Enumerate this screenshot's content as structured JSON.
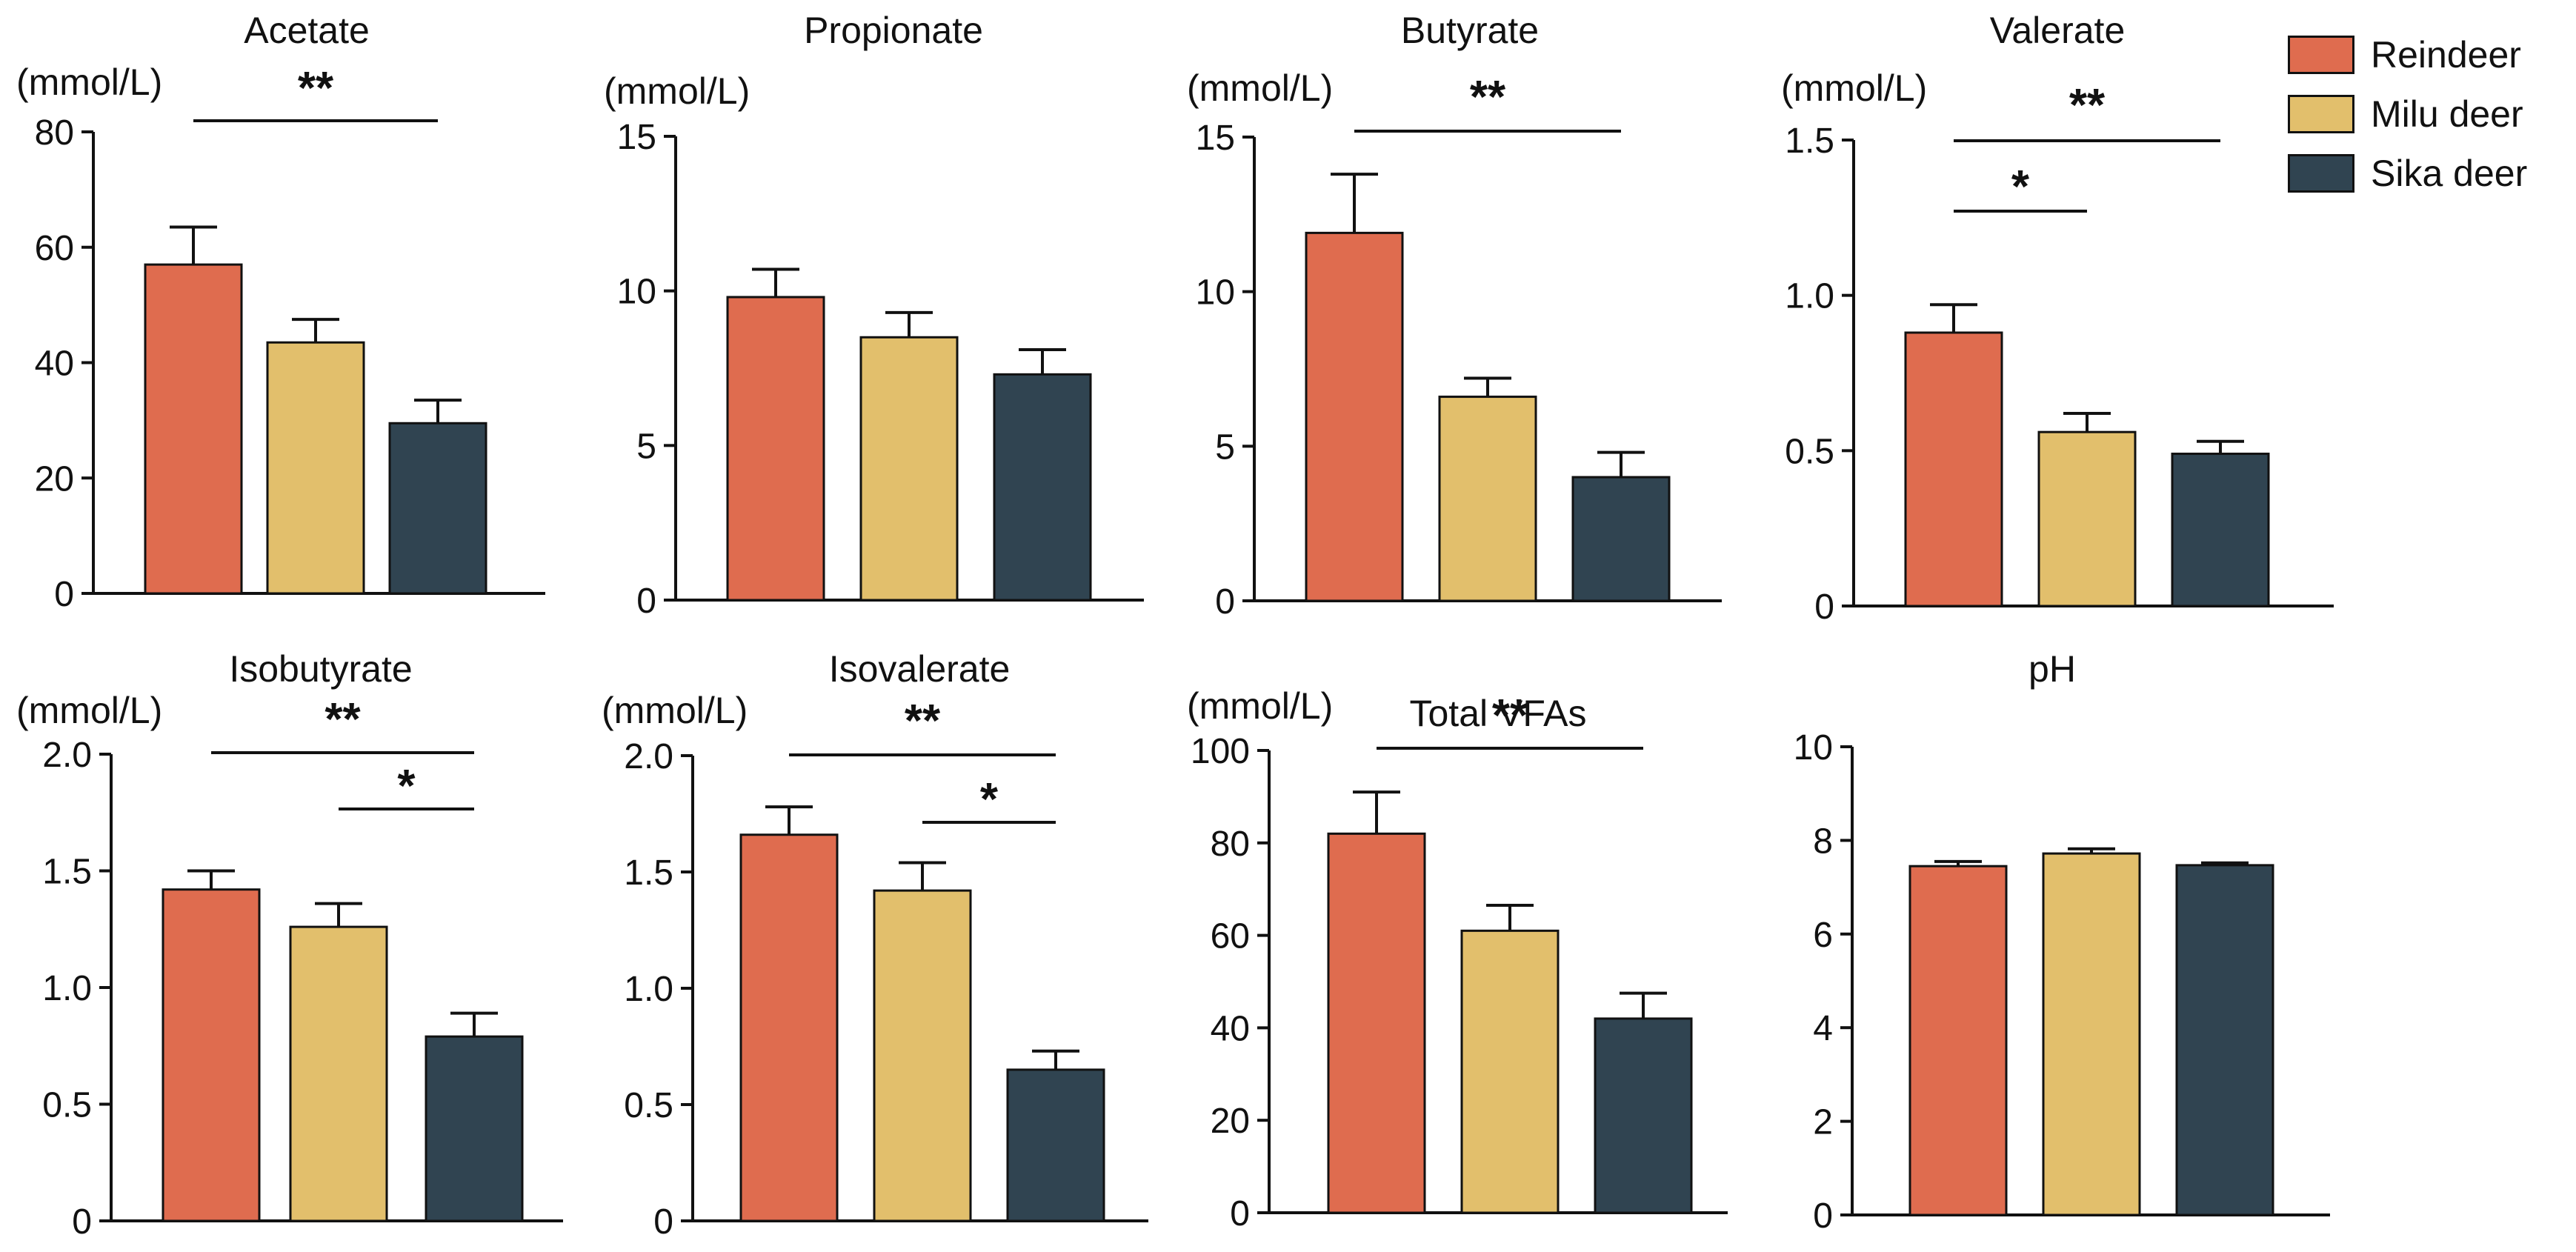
{
  "colors": {
    "Reindeer": "#df6c4f",
    "Milu deer": "#e2bf6c",
    "Sika deer": "#304451",
    "axis": "#111111"
  },
  "legend": [
    {
      "label": "Reindeer",
      "color": "#df6c4f"
    },
    {
      "label": "Milu deer",
      "color": "#e2bf6c"
    },
    {
      "label": "Sika deer",
      "color": "#304451"
    }
  ],
  "chart_data": [
    {
      "type": "bar",
      "title": "Acetate",
      "ylabel": "(mmol/L)",
      "categories": [
        "Reindeer",
        "Milu deer",
        "Sika deer"
      ],
      "values": [
        57,
        43.5,
        29.5
      ],
      "errors": [
        6.5,
        4,
        4
      ],
      "ylim": [
        0,
        80
      ],
      "yticks": [
        "0",
        "20",
        "40",
        "60",
        "80"
      ],
      "significance": [
        {
          "from": 0,
          "to": 2,
          "label": "**"
        }
      ]
    },
    {
      "type": "bar",
      "title": "Propionate",
      "ylabel": "(mmol/L)",
      "categories": [
        "Reindeer",
        "Milu deer",
        "Sika deer"
      ],
      "values": [
        9.8,
        8.5,
        7.3
      ],
      "errors": [
        0.9,
        0.8,
        0.8
      ],
      "ylim": [
        0,
        15
      ],
      "yticks": [
        "0",
        "5",
        "10",
        "15"
      ],
      "significance": []
    },
    {
      "type": "bar",
      "title": "Butyrate",
      "ylabel": "(mmol/L)",
      "categories": [
        "Reindeer",
        "Milu deer",
        "Sika deer"
      ],
      "values": [
        11.9,
        6.6,
        4.0
      ],
      "errors": [
        1.9,
        0.6,
        0.8
      ],
      "ylim": [
        0,
        15
      ],
      "yticks": [
        "0",
        "5",
        "10",
        "15"
      ],
      "significance": [
        {
          "from": 0,
          "to": 2,
          "label": "**"
        }
      ]
    },
    {
      "type": "bar",
      "title": "Valerate",
      "ylabel": "(mmol/L)",
      "categories": [
        "Reindeer",
        "Milu deer",
        "Sika deer"
      ],
      "values": [
        0.88,
        0.56,
        0.49
      ],
      "errors": [
        0.09,
        0.06,
        0.04
      ],
      "ylim": [
        0,
        1.5
      ],
      "yticks": [
        "0",
        "0.5",
        "1.0",
        "1.5"
      ],
      "significance": [
        {
          "from": 0,
          "to": 2,
          "label": "**"
        },
        {
          "from": 0,
          "to": 1,
          "label": "*"
        }
      ]
    },
    {
      "type": "bar",
      "title": "Isobutyrate",
      "ylabel": "(mmol/L)",
      "categories": [
        "Reindeer",
        "Milu deer",
        "Sika deer"
      ],
      "values": [
        1.42,
        1.26,
        0.79
      ],
      "errors": [
        0.08,
        0.1,
        0.1
      ],
      "ylim": [
        0,
        2.0
      ],
      "yticks": [
        "0",
        "0.5",
        "1.0",
        "1.5",
        "2.0"
      ],
      "significance": [
        {
          "from": 0,
          "to": 2,
          "label": "**"
        },
        {
          "from": 1,
          "to": 2,
          "label": "*"
        }
      ]
    },
    {
      "type": "bar",
      "title": "Isovalerate",
      "ylabel": "(mmol/L)",
      "categories": [
        "Reindeer",
        "Milu deer",
        "Sika deer"
      ],
      "values": [
        1.66,
        1.42,
        0.65
      ],
      "errors": [
        0.12,
        0.12,
        0.08
      ],
      "ylim": [
        0,
        2.0
      ],
      "yticks": [
        "0",
        "0.5",
        "1.0",
        "1.5",
        "2.0"
      ],
      "significance": [
        {
          "from": 0,
          "to": 2,
          "label": "**"
        },
        {
          "from": 1,
          "to": 2,
          "label": "*"
        }
      ]
    },
    {
      "type": "bar",
      "title": "Total VFAs",
      "ylabel": "(mmol/L)",
      "categories": [
        "Reindeer",
        "Milu deer",
        "Sika deer"
      ],
      "values": [
        82,
        61,
        42
      ],
      "errors": [
        9,
        5.5,
        5.5
      ],
      "ylim": [
        0,
        100
      ],
      "yticks": [
        "0",
        "20",
        "40",
        "60",
        "80",
        "100"
      ],
      "significance": [
        {
          "from": 0,
          "to": 2,
          "label": "**"
        }
      ]
    },
    {
      "type": "bar",
      "title": "pH",
      "ylabel": "",
      "categories": [
        "Reindeer",
        "Milu deer",
        "Sika deer"
      ],
      "values": [
        7.45,
        7.72,
        7.47
      ],
      "errors": [
        0.1,
        0.1,
        0.05
      ],
      "ylim": [
        0,
        10
      ],
      "yticks": [
        "0",
        "2",
        "4",
        "6",
        "8",
        "10"
      ],
      "significance": []
    }
  ]
}
